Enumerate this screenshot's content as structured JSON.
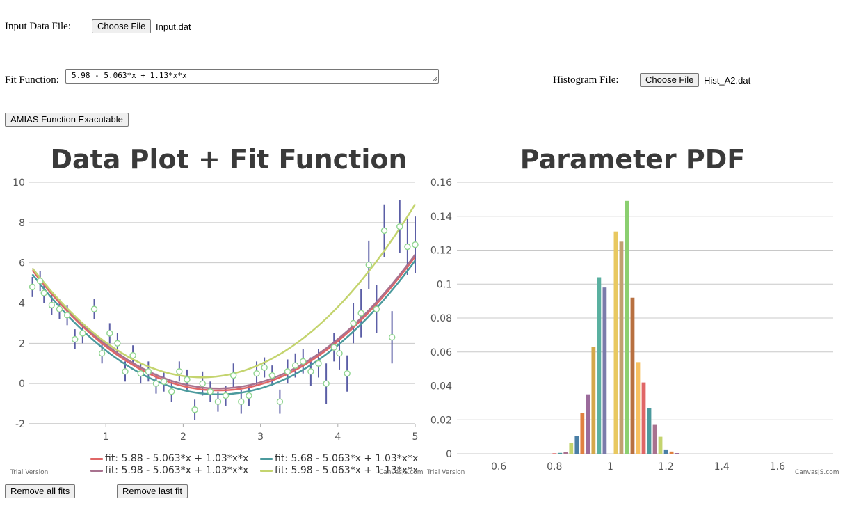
{
  "input": {
    "label": "Input Data File:",
    "button": "Choose File",
    "file": "Input.dat"
  },
  "fit": {
    "label": "Fit Function:",
    "value": "5.98 - 5.063*x + 1.13*x*x"
  },
  "histogram": {
    "label": "Histogram File:",
    "button": "Choose File",
    "file": "Hist_A2.dat"
  },
  "amias_button": "AMIAS Function Exacutable",
  "remove_all": "Remove all fits",
  "remove_last": "Remove last fit",
  "watermark": {
    "trial": "Trial Version",
    "brand": "CanvasJS.com"
  },
  "colors": {
    "bar_palette": [
      "#e06666",
      "#4b9a9d",
      "#a8728f",
      "#c4d46e",
      "#4a7fa6",
      "#e08040",
      "#9b6b9b",
      "#d4a84b",
      "#5ab0a0",
      "#7b7baa",
      "#e8c860",
      "#c0a070",
      "#8bcf70",
      "#b87040",
      "#f7c060"
    ]
  },
  "chart_data": [
    {
      "type": "scatter",
      "title": "Data Plot + Fit Function",
      "xlim": [
        0.0,
        5.0
      ],
      "ylim": [
        -2,
        10
      ],
      "x_ticks": [
        1,
        2,
        3,
        4,
        5
      ],
      "y_ticks": [
        -2,
        0,
        2,
        4,
        6,
        8,
        10
      ],
      "x_tick_labels": [
        "1",
        "2",
        "3",
        "4",
        "5"
      ],
      "y_tick_labels": [
        "-2",
        "0",
        "2",
        "4",
        "6",
        "8",
        "10"
      ],
      "grid": true,
      "points": [
        {
          "x": 0.05,
          "y": 4.8,
          "err": 0.5
        },
        {
          "x": 0.15,
          "y": 5.1,
          "err": 0.5
        },
        {
          "x": 0.2,
          "y": 4.5,
          "err": 0.5
        },
        {
          "x": 0.3,
          "y": 3.9,
          "err": 0.5
        },
        {
          "x": 0.4,
          "y": 3.7,
          "err": 0.5
        },
        {
          "x": 0.5,
          "y": 3.4,
          "err": 0.5
        },
        {
          "x": 0.6,
          "y": 2.2,
          "err": 0.5
        },
        {
          "x": 0.7,
          "y": 2.5,
          "err": 0.5
        },
        {
          "x": 0.85,
          "y": 3.7,
          "err": 0.5
        },
        {
          "x": 0.95,
          "y": 1.5,
          "err": 0.5
        },
        {
          "x": 1.05,
          "y": 2.5,
          "err": 0.5
        },
        {
          "x": 1.15,
          "y": 2.0,
          "err": 0.5
        },
        {
          "x": 1.25,
          "y": 0.6,
          "err": 0.5
        },
        {
          "x": 1.35,
          "y": 1.4,
          "err": 0.5
        },
        {
          "x": 1.45,
          "y": 0.5,
          "err": 0.5
        },
        {
          "x": 1.55,
          "y": 0.6,
          "err": 0.5
        },
        {
          "x": 1.65,
          "y": 0.0,
          "err": 0.5
        },
        {
          "x": 1.75,
          "y": 0.1,
          "err": 0.5
        },
        {
          "x": 1.85,
          "y": -0.4,
          "err": 0.5
        },
        {
          "x": 1.95,
          "y": 0.6,
          "err": 0.5
        },
        {
          "x": 2.05,
          "y": 0.2,
          "err": 0.5
        },
        {
          "x": 2.15,
          "y": -1.3,
          "err": 0.5
        },
        {
          "x": 2.25,
          "y": 0.0,
          "err": 0.6
        },
        {
          "x": 2.35,
          "y": -0.4,
          "err": 0.5
        },
        {
          "x": 2.45,
          "y": -0.9,
          "err": 0.5
        },
        {
          "x": 2.55,
          "y": -0.6,
          "err": 0.5
        },
        {
          "x": 2.65,
          "y": 0.4,
          "err": 0.6
        },
        {
          "x": 2.75,
          "y": -0.9,
          "err": 0.6
        },
        {
          "x": 2.85,
          "y": -0.6,
          "err": 0.5
        },
        {
          "x": 2.95,
          "y": 0.5,
          "err": 0.6
        },
        {
          "x": 3.05,
          "y": 0.8,
          "err": 0.5
        },
        {
          "x": 3.15,
          "y": 0.4,
          "err": 0.5
        },
        {
          "x": 3.25,
          "y": -0.9,
          "err": 0.6
        },
        {
          "x": 3.35,
          "y": 0.6,
          "err": 0.6
        },
        {
          "x": 3.45,
          "y": 0.9,
          "err": 0.6
        },
        {
          "x": 3.55,
          "y": 1.1,
          "err": 0.6
        },
        {
          "x": 3.65,
          "y": 0.6,
          "err": 0.7
        },
        {
          "x": 3.75,
          "y": 1.0,
          "err": 0.7
        },
        {
          "x": 3.85,
          "y": 0.0,
          "err": 1.0
        },
        {
          "x": 3.95,
          "y": 1.8,
          "err": 0.7
        },
        {
          "x": 4.02,
          "y": 1.5,
          "err": 0.8
        },
        {
          "x": 4.12,
          "y": 0.5,
          "err": 0.9
        },
        {
          "x": 4.2,
          "y": 3.0,
          "err": 1.0
        },
        {
          "x": 4.3,
          "y": 3.5,
          "err": 1.2
        },
        {
          "x": 4.4,
          "y": 5.9,
          "err": 1.2
        },
        {
          "x": 4.5,
          "y": 3.7,
          "err": 1.2
        },
        {
          "x": 4.6,
          "y": 7.6,
          "err": 1.3
        },
        {
          "x": 4.7,
          "y": 2.3,
          "err": 1.3
        },
        {
          "x": 4.8,
          "y": 7.8,
          "err": 1.3
        },
        {
          "x": 4.9,
          "y": 6.8,
          "err": 1.4
        },
        {
          "x": 5.0,
          "y": 6.9,
          "err": 1.4
        }
      ],
      "fits": [
        {
          "name": "fit:  5.88 - 5.063*x + 1.03*x*x",
          "a": 5.88,
          "b": -5.063,
          "c": 1.03,
          "color": "#e06666"
        },
        {
          "name": "fit:  5.68 - 5.063*x + 1.03*x*x",
          "a": 5.68,
          "b": -5.063,
          "c": 1.03,
          "color": "#4b9a9d"
        },
        {
          "name": "fit:  5.98 - 5.063*x + 1.03*x*x",
          "a": 5.98,
          "b": -5.063,
          "c": 1.03,
          "color": "#a8728f"
        },
        {
          "name": "fit:  5.98 - 5.063*x + 1.13*x*x",
          "a": 5.98,
          "b": -5.063,
          "c": 1.13,
          "color": "#c4d46e"
        }
      ]
    },
    {
      "type": "bar",
      "title": "Parameter PDF",
      "xlim": [
        0.45,
        1.8
      ],
      "ylim": [
        0,
        0.16
      ],
      "x_ticks": [
        0.6,
        0.8,
        1,
        1.2,
        1.4,
        1.6
      ],
      "x_tick_labels": [
        "0.6",
        "0.8",
        "1",
        "1.2",
        "1.4",
        "1.6"
      ],
      "y_ticks": [
        0,
        0.02,
        0.04,
        0.06,
        0.08,
        0.1,
        0.12,
        0.14,
        0.16
      ],
      "y_tick_labels": [
        "0",
        "0.02",
        "0.04",
        "0.06",
        "0.08",
        "0.1",
        "0.12",
        "0.14",
        "0.16"
      ],
      "grid": true,
      "bins": [
        {
          "x": 0.8,
          "y": 0.0003
        },
        {
          "x": 0.82,
          "y": 0.0005
        },
        {
          "x": 0.84,
          "y": 0.0012
        },
        {
          "x": 0.86,
          "y": 0.0065
        },
        {
          "x": 0.88,
          "y": 0.0105
        },
        {
          "x": 0.9,
          "y": 0.024
        },
        {
          "x": 0.92,
          "y": 0.035
        },
        {
          "x": 0.94,
          "y": 0.063
        },
        {
          "x": 0.96,
          "y": 0.104
        },
        {
          "x": 0.98,
          "y": 0.098
        },
        {
          "x": 1.02,
          "y": 0.131
        },
        {
          "x": 1.04,
          "y": 0.125
        },
        {
          "x": 1.06,
          "y": 0.149
        },
        {
          "x": 1.08,
          "y": 0.092
        },
        {
          "x": 1.1,
          "y": 0.054
        },
        {
          "x": 1.12,
          "y": 0.042
        },
        {
          "x": 1.14,
          "y": 0.027
        },
        {
          "x": 1.16,
          "y": 0.017
        },
        {
          "x": 1.18,
          "y": 0.01
        },
        {
          "x": 1.2,
          "y": 0.0025
        },
        {
          "x": 1.22,
          "y": 0.0013
        },
        {
          "x": 1.24,
          "y": 0.0004
        }
      ]
    }
  ]
}
